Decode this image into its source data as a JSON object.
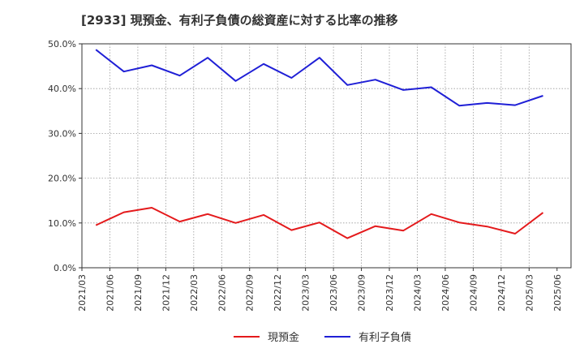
{
  "chart_data": {
    "type": "line",
    "title": "[2933]  現預金、有利子負債の総資産に対する比率の推移",
    "xlabel": "",
    "ylabel": "",
    "ylim": [
      0,
      50
    ],
    "y_ticks": [
      "0.0%",
      "10.0%",
      "20.0%",
      "30.0%",
      "40.0%",
      "50.0%"
    ],
    "x_ticks": [
      "2021/03",
      "2021/06",
      "2021/09",
      "2021/12",
      "2022/03",
      "2022/06",
      "2022/09",
      "2022/12",
      "2023/03",
      "2023/06",
      "2023/09",
      "2023/12",
      "2024/03",
      "2024/06",
      "2024/09",
      "2024/12",
      "2025/03",
      "2025/06"
    ],
    "categories": [
      "2021/03",
      "2021/06",
      "2021/09",
      "2021/12",
      "2022/03",
      "2022/06",
      "2022/09",
      "2022/12",
      "2023/03",
      "2023/06",
      "2023/09",
      "2023/12",
      "2024/03",
      "2024/06",
      "2024/09",
      "2024/12",
      "2025/03"
    ],
    "series": [
      {
        "name": "現預金",
        "color": "#e41a1c",
        "values": [
          9.5,
          12.4,
          13.4,
          10.3,
          12.0,
          10.0,
          11.8,
          8.4,
          10.1,
          6.6,
          9.3,
          8.3,
          12.0,
          10.1,
          9.2,
          7.6,
          12.3
        ]
      },
      {
        "name": "有利子負債",
        "color": "#1f1fd6",
        "values": [
          48.7,
          43.8,
          45.2,
          42.9,
          46.9,
          41.7,
          45.5,
          42.4,
          46.9,
          40.8,
          42.0,
          39.7,
          40.3,
          36.2,
          36.8,
          36.3,
          38.4
        ]
      }
    ],
    "grid": true,
    "legend": "bottom-center"
  }
}
